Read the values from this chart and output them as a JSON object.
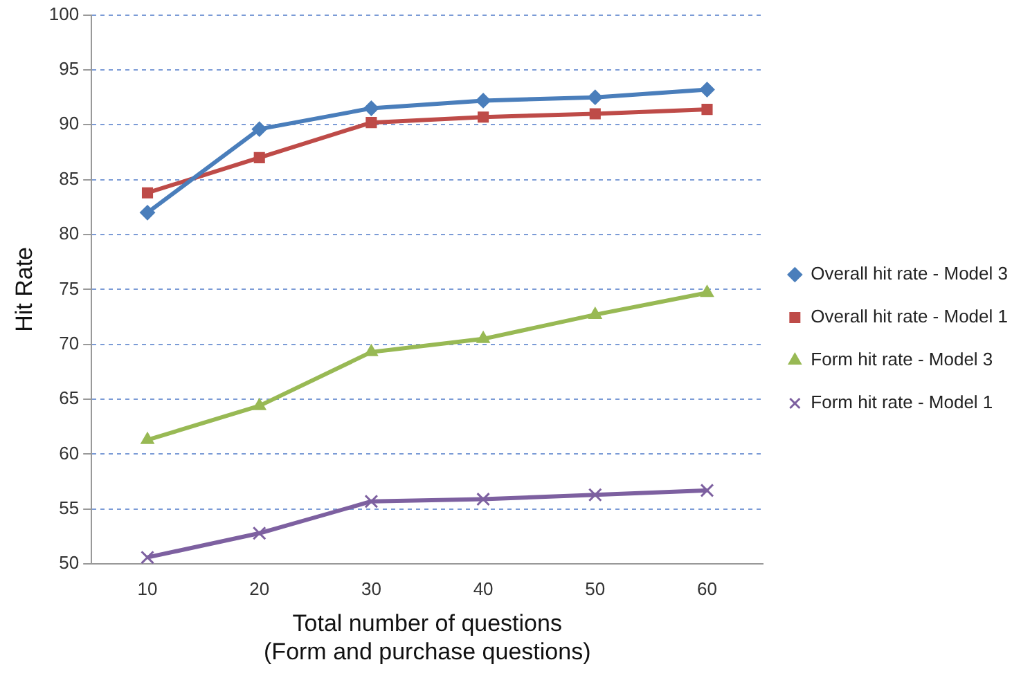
{
  "chart_data": {
    "type": "line",
    "xlabel": "Total number of questions\n(Form and purchase questions)",
    "ylabel": "Hit Rate",
    "categories": [
      "10",
      "20",
      "30",
      "40",
      "50",
      "60"
    ],
    "ylim": [
      50,
      100
    ],
    "yticks": [
      50,
      55,
      60,
      65,
      70,
      75,
      80,
      85,
      90,
      95,
      100
    ],
    "grid": "y",
    "legend": "right",
    "line_style": "solid",
    "series": [
      {
        "name": "Overall hit rate - Model 3",
        "color": "#4a7ebb",
        "marker": "diamond",
        "values": [
          82,
          89.6,
          91.5,
          92.2,
          92.5,
          93.2
        ]
      },
      {
        "name": "Overall hit rate - Model 1",
        "color": "#be4b48",
        "marker": "square",
        "values": [
          83.8,
          87,
          90.2,
          90.7,
          91,
          91.4
        ]
      },
      {
        "name": "Form hit rate - Model 3",
        "color": "#98b954",
        "marker": "triangle",
        "values": [
          61.3,
          64.4,
          69.3,
          70.5,
          72.7,
          74.7
        ]
      },
      {
        "name": "Form hit rate - Model 1",
        "color": "#7d60a0",
        "marker": "cross",
        "values": [
          50.6,
          52.8,
          55.7,
          55.9,
          56.3,
          56.7
        ]
      }
    ]
  }
}
